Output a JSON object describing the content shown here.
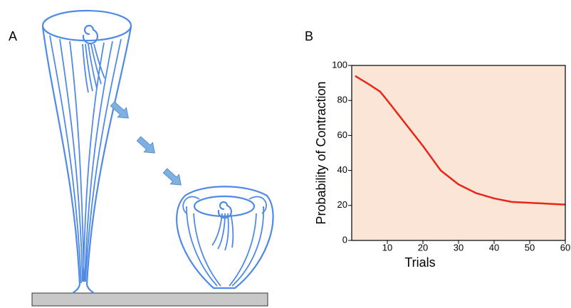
{
  "panel_a_label": "A",
  "chart_data": {
    "type": "line",
    "panel_label": "B",
    "x_label": "Trials",
    "y_label": "Probability of Contraction",
    "x": [
      1,
      5,
      8,
      10,
      15,
      20,
      25,
      30,
      35,
      40,
      45,
      50,
      55,
      60
    ],
    "series": [
      {
        "color": "#e8261a",
        "values": [
          94,
          89,
          85,
          80,
          67,
          54,
          40,
          32,
          27,
          24,
          22,
          21.5,
          21,
          20.5
        ]
      }
    ],
    "xlim": [
      0,
      60
    ],
    "xticks": [
      10,
      20,
      30,
      40,
      50,
      60
    ],
    "ylim": [
      0,
      100
    ],
    "yticks": [
      0,
      20,
      40,
      60,
      80,
      100
    ],
    "background": "#fbe5d6"
  }
}
